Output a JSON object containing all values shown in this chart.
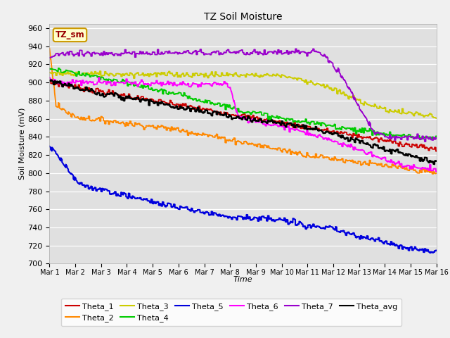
{
  "title": "TZ Soil Moisture",
  "ylabel": "Soil Moisture (mV)",
  "xlabel": "Time",
  "legend_label": "TZ_sm",
  "ylim": [
    700,
    965
  ],
  "yticks": [
    700,
    720,
    740,
    760,
    780,
    800,
    820,
    840,
    860,
    880,
    900,
    920,
    940,
    960
  ],
  "xtick_labels": [
    "Mar 1",
    "Mar 2",
    "Mar 3",
    "Mar 4",
    "Mar 5",
    "Mar 6",
    "Mar 7",
    "Mar 8",
    "Mar 9",
    "Mar 10",
    "Mar 11",
    "Mar 12",
    "Mar 13",
    "Mar 14",
    "Mar 15",
    "Mar 16"
  ],
  "colors": {
    "Theta_1": "#cc0000",
    "Theta_2": "#ff8800",
    "Theta_3": "#cccc00",
    "Theta_4": "#00cc00",
    "Theta_5": "#0000dd",
    "Theta_6": "#ff00ff",
    "Theta_7": "#9900cc",
    "Theta_avg": "#000000"
  },
  "background_color": "#e0e0e0",
  "grid_color": "#ffffff",
  "legend_box_facecolor": "#ffffcc",
  "legend_box_edgecolor": "#cc9900",
  "legend_text_color": "#990000",
  "fig_facecolor": "#f0f0f0"
}
